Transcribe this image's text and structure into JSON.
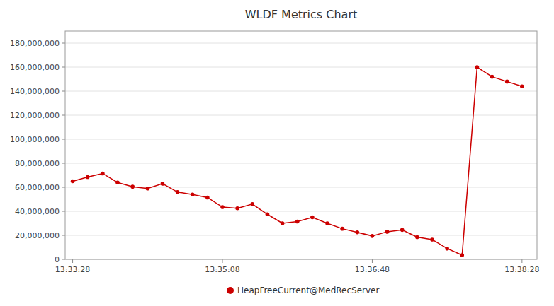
{
  "chart_data": {
    "type": "line",
    "title": "WLDF Metrics Chart",
    "x": [
      0,
      1,
      2,
      3,
      4,
      5,
      6,
      7,
      8,
      9,
      10,
      11,
      12,
      13,
      14,
      15,
      16,
      17,
      18,
      19,
      20,
      21,
      22,
      23,
      24,
      25,
      26,
      27,
      28,
      29,
      30
    ],
    "series": [
      {
        "name": "HeapFreeCurrent@MedRecServer",
        "color": "#cc0000",
        "marker": "circle",
        "values": [
          65000000,
          68500000,
          71500000,
          64000000,
          60500000,
          59000000,
          63000000,
          56000000,
          54000000,
          51500000,
          43500000,
          42500000,
          46000000,
          37500000,
          30000000,
          31500000,
          35000000,
          30000000,
          25500000,
          22500000,
          19500000,
          23000000,
          24500000,
          18500000,
          16500000,
          9000000,
          3500000,
          160000000,
          152000000,
          148000000,
          144000000
        ]
      }
    ],
    "xlim": [
      -0.5,
      31.0
    ],
    "ylim": [
      0,
      190000000
    ],
    "xticks": [
      {
        "value": 0,
        "label": "13:33:28"
      },
      {
        "value": 10,
        "label": "13:35:08"
      },
      {
        "value": 20,
        "label": "13:36:48"
      },
      {
        "value": 30,
        "label": "13:38:28"
      }
    ],
    "yticks": [
      0,
      {
        "value": 20000000,
        "label": "20,000,000"
      },
      {
        "value": 40000000,
        "label": "40,000,000"
      },
      {
        "value": 60000000,
        "label": "60,000,000"
      },
      {
        "value": 80000000,
        "label": "80,000,000"
      },
      {
        "value": 100000000,
        "label": "100,000,000"
      },
      {
        "value": 120000000,
        "label": "120,000,000"
      },
      {
        "value": 140000000,
        "label": "140,000,000"
      },
      {
        "value": 160000000,
        "label": "160,000,000"
      },
      {
        "value": 180000000,
        "label": "180,000,000"
      }
    ],
    "grid": "y",
    "legend": "bottom"
  }
}
